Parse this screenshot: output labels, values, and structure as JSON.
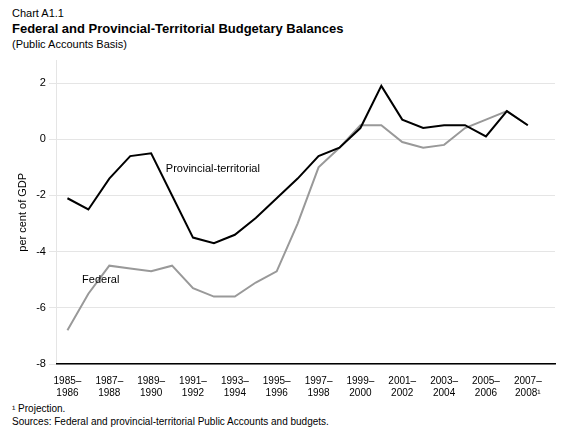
{
  "chart_data": {
    "type": "line",
    "chart_label": "Chart A1.1",
    "title": "Federal and Provincial-Territorial Budgetary Balances",
    "subtitle": "(Public Accounts Basis)",
    "ylabel": "per cent of GDP",
    "footnotes": [
      "¹ Projection.",
      "Sources: Federal and provincial-territorial Public Accounts and budgets."
    ],
    "x": [
      1985.5,
      1986.5,
      1987.5,
      1988.5,
      1989.5,
      1990.5,
      1991.5,
      1992.5,
      1993.5,
      1994.5,
      1995.5,
      1996.5,
      1997.5,
      1998.5,
      1999.5,
      2000.5,
      2001.5,
      2002.5,
      2003.5,
      2004.5,
      2005.5,
      2006.5,
      2007.5
    ],
    "series": [
      {
        "name": "Federal",
        "color": "#999999",
        "values": [
          -6.8,
          -5.5,
          -4.5,
          -4.6,
          -4.7,
          -4.5,
          -5.3,
          -5.6,
          -5.6,
          -5.1,
          -4.7,
          -3.0,
          -1.0,
          -0.3,
          0.5,
          0.5,
          -0.1,
          -0.3,
          -0.2,
          0.4,
          0.7,
          1.0,
          0.5
        ]
      },
      {
        "name": "Provincial-territorial",
        "color": "#000000",
        "values": [
          -2.1,
          -2.5,
          -1.4,
          -0.6,
          -0.5,
          -2.0,
          -3.5,
          -3.7,
          -3.4,
          -2.8,
          -2.1,
          -1.4,
          -0.6,
          -0.3,
          0.4,
          1.9,
          0.7,
          0.4,
          0.5,
          0.5,
          0.1,
          1.0,
          0.5
        ]
      }
    ],
    "annotations": [
      {
        "text": "Federal",
        "x": 1986.2,
        "y": -5.0
      },
      {
        "text": "Provincial-territorial",
        "x": 1990.2,
        "y": -1.05
      }
    ],
    "xlim": [
      1985.0,
      2008.8
    ],
    "xticks": [
      {
        "value": 1985.5,
        "label": "1985–\n1986"
      },
      {
        "value": 1987.5,
        "label": "1987–\n1988"
      },
      {
        "value": 1989.5,
        "label": "1989–\n1990"
      },
      {
        "value": 1991.5,
        "label": "1991–\n1992"
      },
      {
        "value": 1993.5,
        "label": "1993–\n1994"
      },
      {
        "value": 1995.5,
        "label": "1995–\n1996"
      },
      {
        "value": 1997.5,
        "label": "1997–\n1998"
      },
      {
        "value": 1999.5,
        "label": "1999–\n2000"
      },
      {
        "value": 2001.5,
        "label": "2001–\n2002"
      },
      {
        "value": 2003.5,
        "label": "2003–\n2004"
      },
      {
        "value": 2005.5,
        "label": "2005–\n2006"
      },
      {
        "value": 2007.5,
        "label": "2007–\n2008¹"
      }
    ],
    "ylim": [
      -8,
      2.8
    ],
    "yticks": [
      -8,
      -6,
      -4,
      -2,
      0,
      2
    ],
    "grid": "y"
  }
}
